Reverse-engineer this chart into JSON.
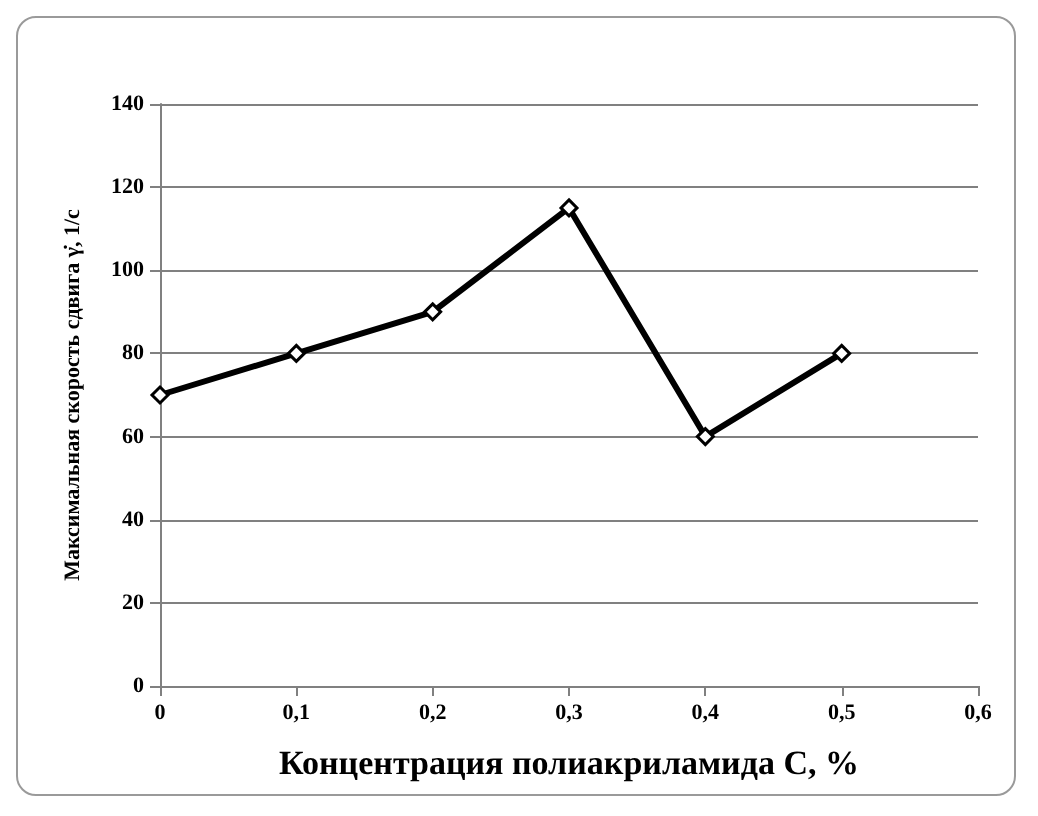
{
  "chart_data": {
    "type": "line",
    "xlabel": "Концентрация полиакриламида C, %",
    "ylabel": "Максимальная скорость сдвига γ̇, 1/с",
    "x": [
      0,
      0.1,
      0.2,
      0.3,
      0.4,
      0.5
    ],
    "series": [
      {
        "color": "#000000",
        "values": [
          70,
          80,
          90,
          115,
          60,
          80
        ]
      }
    ],
    "xlim": [
      0,
      0.6
    ],
    "xticks": [
      0,
      {
        "value": 0.1,
        "label": "0,1"
      },
      {
        "value": 0.2,
        "label": "0,2"
      },
      {
        "value": 0.3,
        "label": "0,3"
      },
      {
        "value": 0.4,
        "label": "0,4"
      },
      {
        "value": 0.5,
        "label": "0,5"
      },
      {
        "value": 0.6,
        "label": "0,6"
      }
    ],
    "ylim": [
      0,
      140
    ],
    "yticks": [
      0,
      20,
      40,
      60,
      80,
      100,
      120,
      140
    ],
    "grid": "y",
    "marker": "diamond",
    "line_style": "solid"
  }
}
